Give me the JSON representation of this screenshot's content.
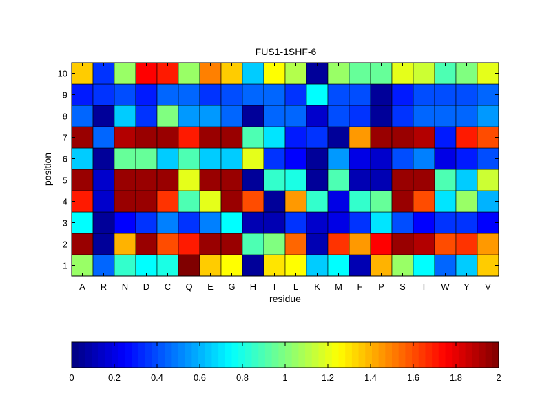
{
  "chart_data": {
    "type": "heatmap",
    "title": "FUS1-1SHF-6",
    "xlabel": "residue",
    "ylabel": "position",
    "x_categories": [
      "A",
      "R",
      "N",
      "D",
      "C",
      "Q",
      "E",
      "G",
      "H",
      "I",
      "L",
      "K",
      "M",
      "F",
      "P",
      "S",
      "T",
      "W",
      "Y",
      "V"
    ],
    "y_categories": [
      "1",
      "2",
      "3",
      "4",
      "5",
      "6",
      "7",
      "8",
      "9",
      "10"
    ],
    "values": [
      [
        1.05,
        0.45,
        0.85,
        0.75,
        0.8,
        2.0,
        1.35,
        1.25,
        0.05,
        1.3,
        1.25,
        0.65,
        0.75,
        0.1,
        1.4,
        1.05,
        0.75,
        0.45,
        0.65,
        1.35
      ],
      [
        1.95,
        0.05,
        1.4,
        1.95,
        1.6,
        1.7,
        1.95,
        1.95,
        0.9,
        1.0,
        1.55,
        0.1,
        1.65,
        1.45,
        1.75,
        1.95,
        1.9,
        1.6,
        1.65,
        1.45
      ],
      [
        0.75,
        0.05,
        0.25,
        0.35,
        0.5,
        0.35,
        0.5,
        0.75,
        0.1,
        0.1,
        0.35,
        0.15,
        0.2,
        0.35,
        0.7,
        0.4,
        0.25,
        0.35,
        0.35,
        0.25
      ],
      [
        1.7,
        0.15,
        1.95,
        1.95,
        1.65,
        0.9,
        1.2,
        1.95,
        1.6,
        0.05,
        1.45,
        0.85,
        0.2,
        0.85,
        0.95,
        1.95,
        1.6,
        0.7,
        1.05,
        0.6
      ],
      [
        1.95,
        0.15,
        1.95,
        1.95,
        1.95,
        1.2,
        1.95,
        1.95,
        0.05,
        0.85,
        0.8,
        0.05,
        0.9,
        0.1,
        0.1,
        1.95,
        1.95,
        0.9,
        0.65,
        1.15
      ],
      [
        0.65,
        0.05,
        0.95,
        0.95,
        0.65,
        0.9,
        0.65,
        0.65,
        1.2,
        0.35,
        0.25,
        0.05,
        0.55,
        0.2,
        0.15,
        0.4,
        0.5,
        0.2,
        0.3,
        0.4
      ],
      [
        1.95,
        0.45,
        1.9,
        1.95,
        1.95,
        1.7,
        1.95,
        1.95,
        0.9,
        0.7,
        0.3,
        0.35,
        0.05,
        1.45,
        1.95,
        1.95,
        1.9,
        0.3,
        1.7,
        1.6
      ],
      [
        0.45,
        0.05,
        0.65,
        0.35,
        1.0,
        0.55,
        0.55,
        0.45,
        0.05,
        0.45,
        0.45,
        0.15,
        0.4,
        0.35,
        0.05,
        0.35,
        0.45,
        0.45,
        0.45,
        0.55
      ],
      [
        0.3,
        0.35,
        0.4,
        0.3,
        0.45,
        0.45,
        0.35,
        0.4,
        0.45,
        0.45,
        0.35,
        0.75,
        0.4,
        0.4,
        0.05,
        0.3,
        0.4,
        0.4,
        0.4,
        0.45
      ],
      [
        1.35,
        0.35,
        1.05,
        1.75,
        1.7,
        1.05,
        1.5,
        1.35,
        0.65,
        1.25,
        1.1,
        0.05,
        1.05,
        0.95,
        0.95,
        1.2,
        1.15,
        0.9,
        1.0,
        1.2
      ]
    ],
    "colormap": "jet",
    "clim": [
      0,
      2
    ],
    "colorbar": {
      "orientation": "horizontal",
      "ticks": [
        0,
        0.2,
        0.4,
        0.6,
        0.8,
        1,
        1.2,
        1.4,
        1.6,
        1.8,
        2
      ],
      "tick_labels": [
        "0",
        "0.2",
        "0.4",
        "0.6",
        "0.8",
        "1",
        "1.2",
        "1.4",
        "1.6",
        "1.8",
        "2"
      ],
      "levels": 64
    },
    "grid": false
  }
}
